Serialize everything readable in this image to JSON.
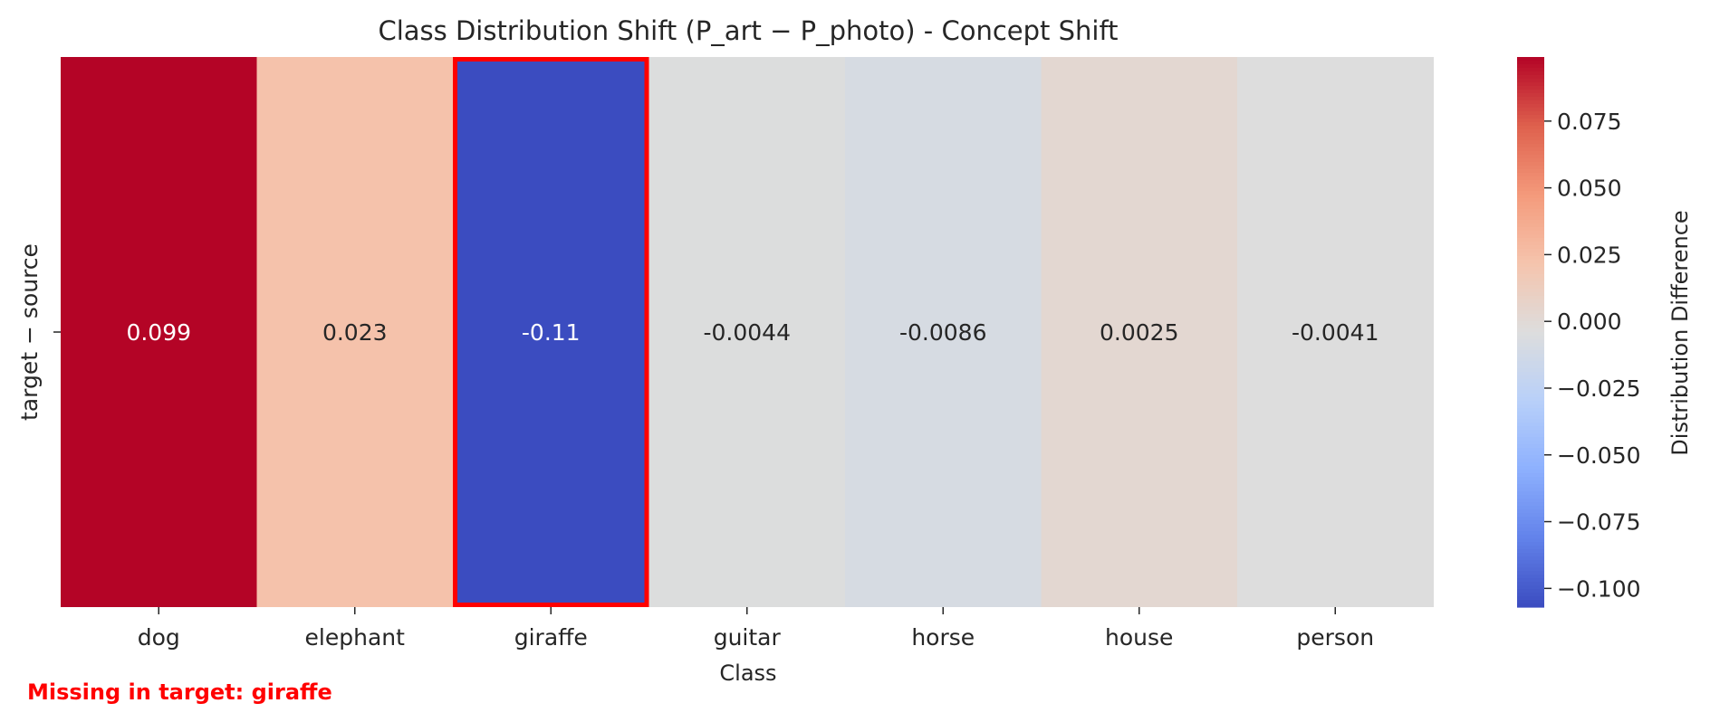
{
  "chart_data": {
    "type": "heatmap",
    "title": "Class Distribution Shift (P_art − P_photo) - Concept Shift",
    "xlabel": "Class",
    "ylabel": "",
    "row_labels": [
      "target − source"
    ],
    "categories": [
      "dog",
      "elephant",
      "giraffe",
      "guitar",
      "horse",
      "house",
      "person"
    ],
    "values": [
      0.099,
      0.023,
      -0.11,
      -0.0044,
      -0.0086,
      0.0025,
      -0.0041
    ],
    "value_labels": [
      "0.099",
      "0.023",
      "-0.11",
      "-0.0044",
      "-0.0086",
      "0.0025",
      "-0.0041"
    ],
    "colormap": "coolwarm",
    "vmin": -0.107,
    "vmax": 0.099,
    "colorbar": {
      "label": "Distribution Difference",
      "ticks": [
        0.075,
        0.05,
        0.025,
        0.0,
        -0.025,
        -0.05,
        -0.075,
        -0.1
      ],
      "tick_labels": [
        "0.075",
        "0.050",
        "0.025",
        "0.000",
        "−0.025",
        "−0.050",
        "−0.075",
        "−0.100"
      ]
    },
    "highlight": {
      "category": "giraffe",
      "color": "#ff0000"
    },
    "annotation": {
      "text": "Missing in target: giraffe",
      "color": "#ff0000"
    }
  }
}
